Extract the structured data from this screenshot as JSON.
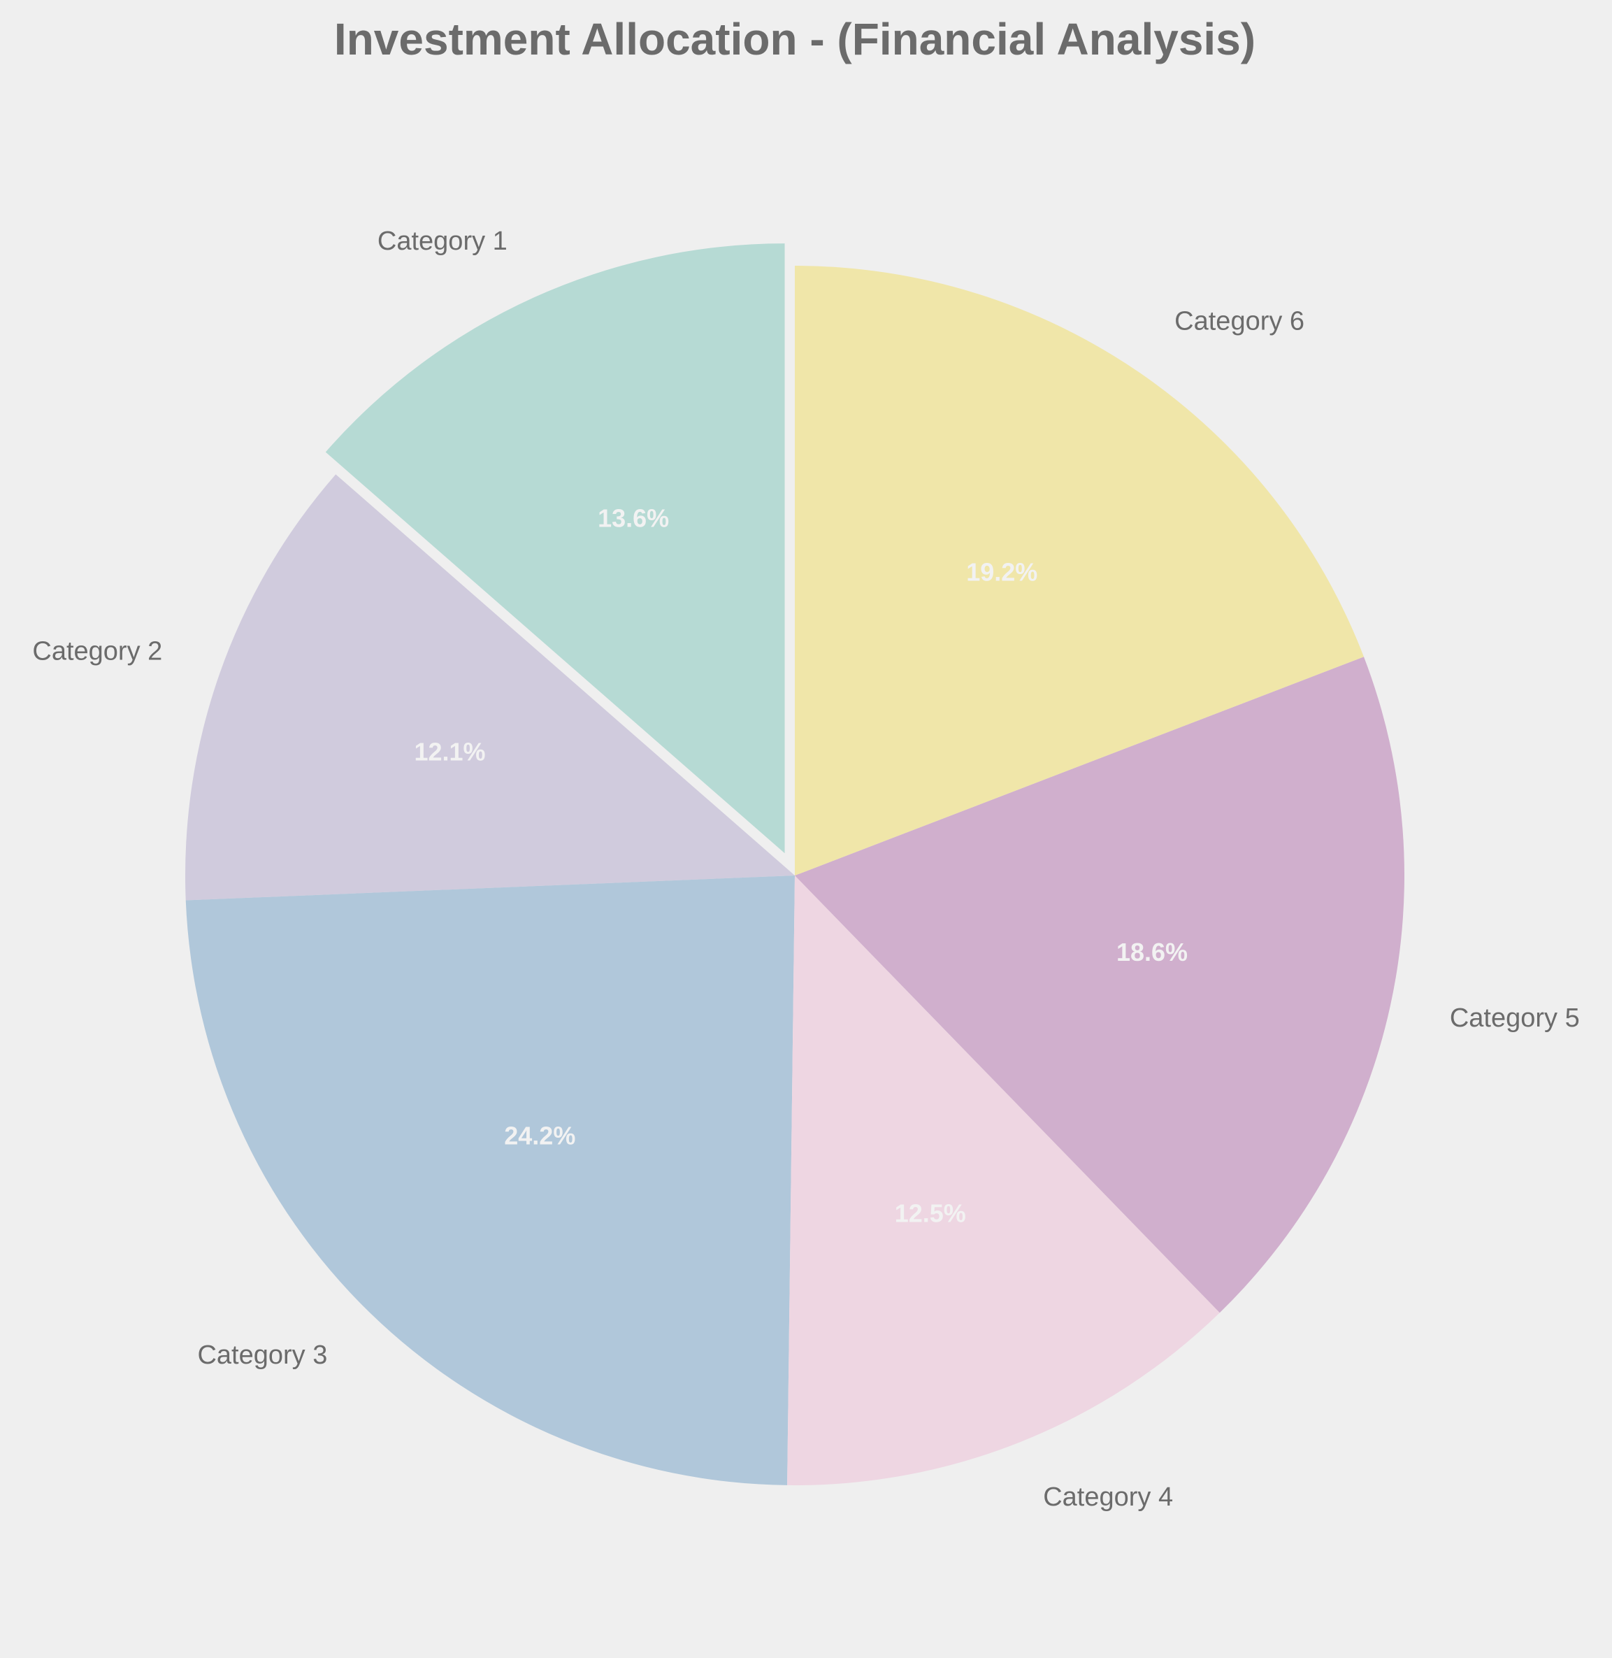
{
  "chart_data": {
    "type": "pie",
    "title": "Investment Allocation - (Financial Analysis)",
    "start_angle_deg": 90,
    "direction": "counterclockwise",
    "categories": [
      "Category 1",
      "Category 2",
      "Category 3",
      "Category 4",
      "Category 5",
      "Category 6"
    ],
    "values": [
      13.6,
      12.1,
      24.2,
      12.5,
      18.6,
      19.2
    ],
    "percent_labels": [
      "13.6%",
      "12.1%",
      "24.2%",
      "12.5%",
      "18.6%",
      "19.2%"
    ],
    "colors": [
      "#b6dad4",
      "#d0cbdd",
      "#b0c7da",
      "#eed6e2",
      "#d0afcd",
      "#f0e6a9"
    ],
    "exploded": [
      "Category 1"
    ],
    "background_color": "#efefef"
  }
}
